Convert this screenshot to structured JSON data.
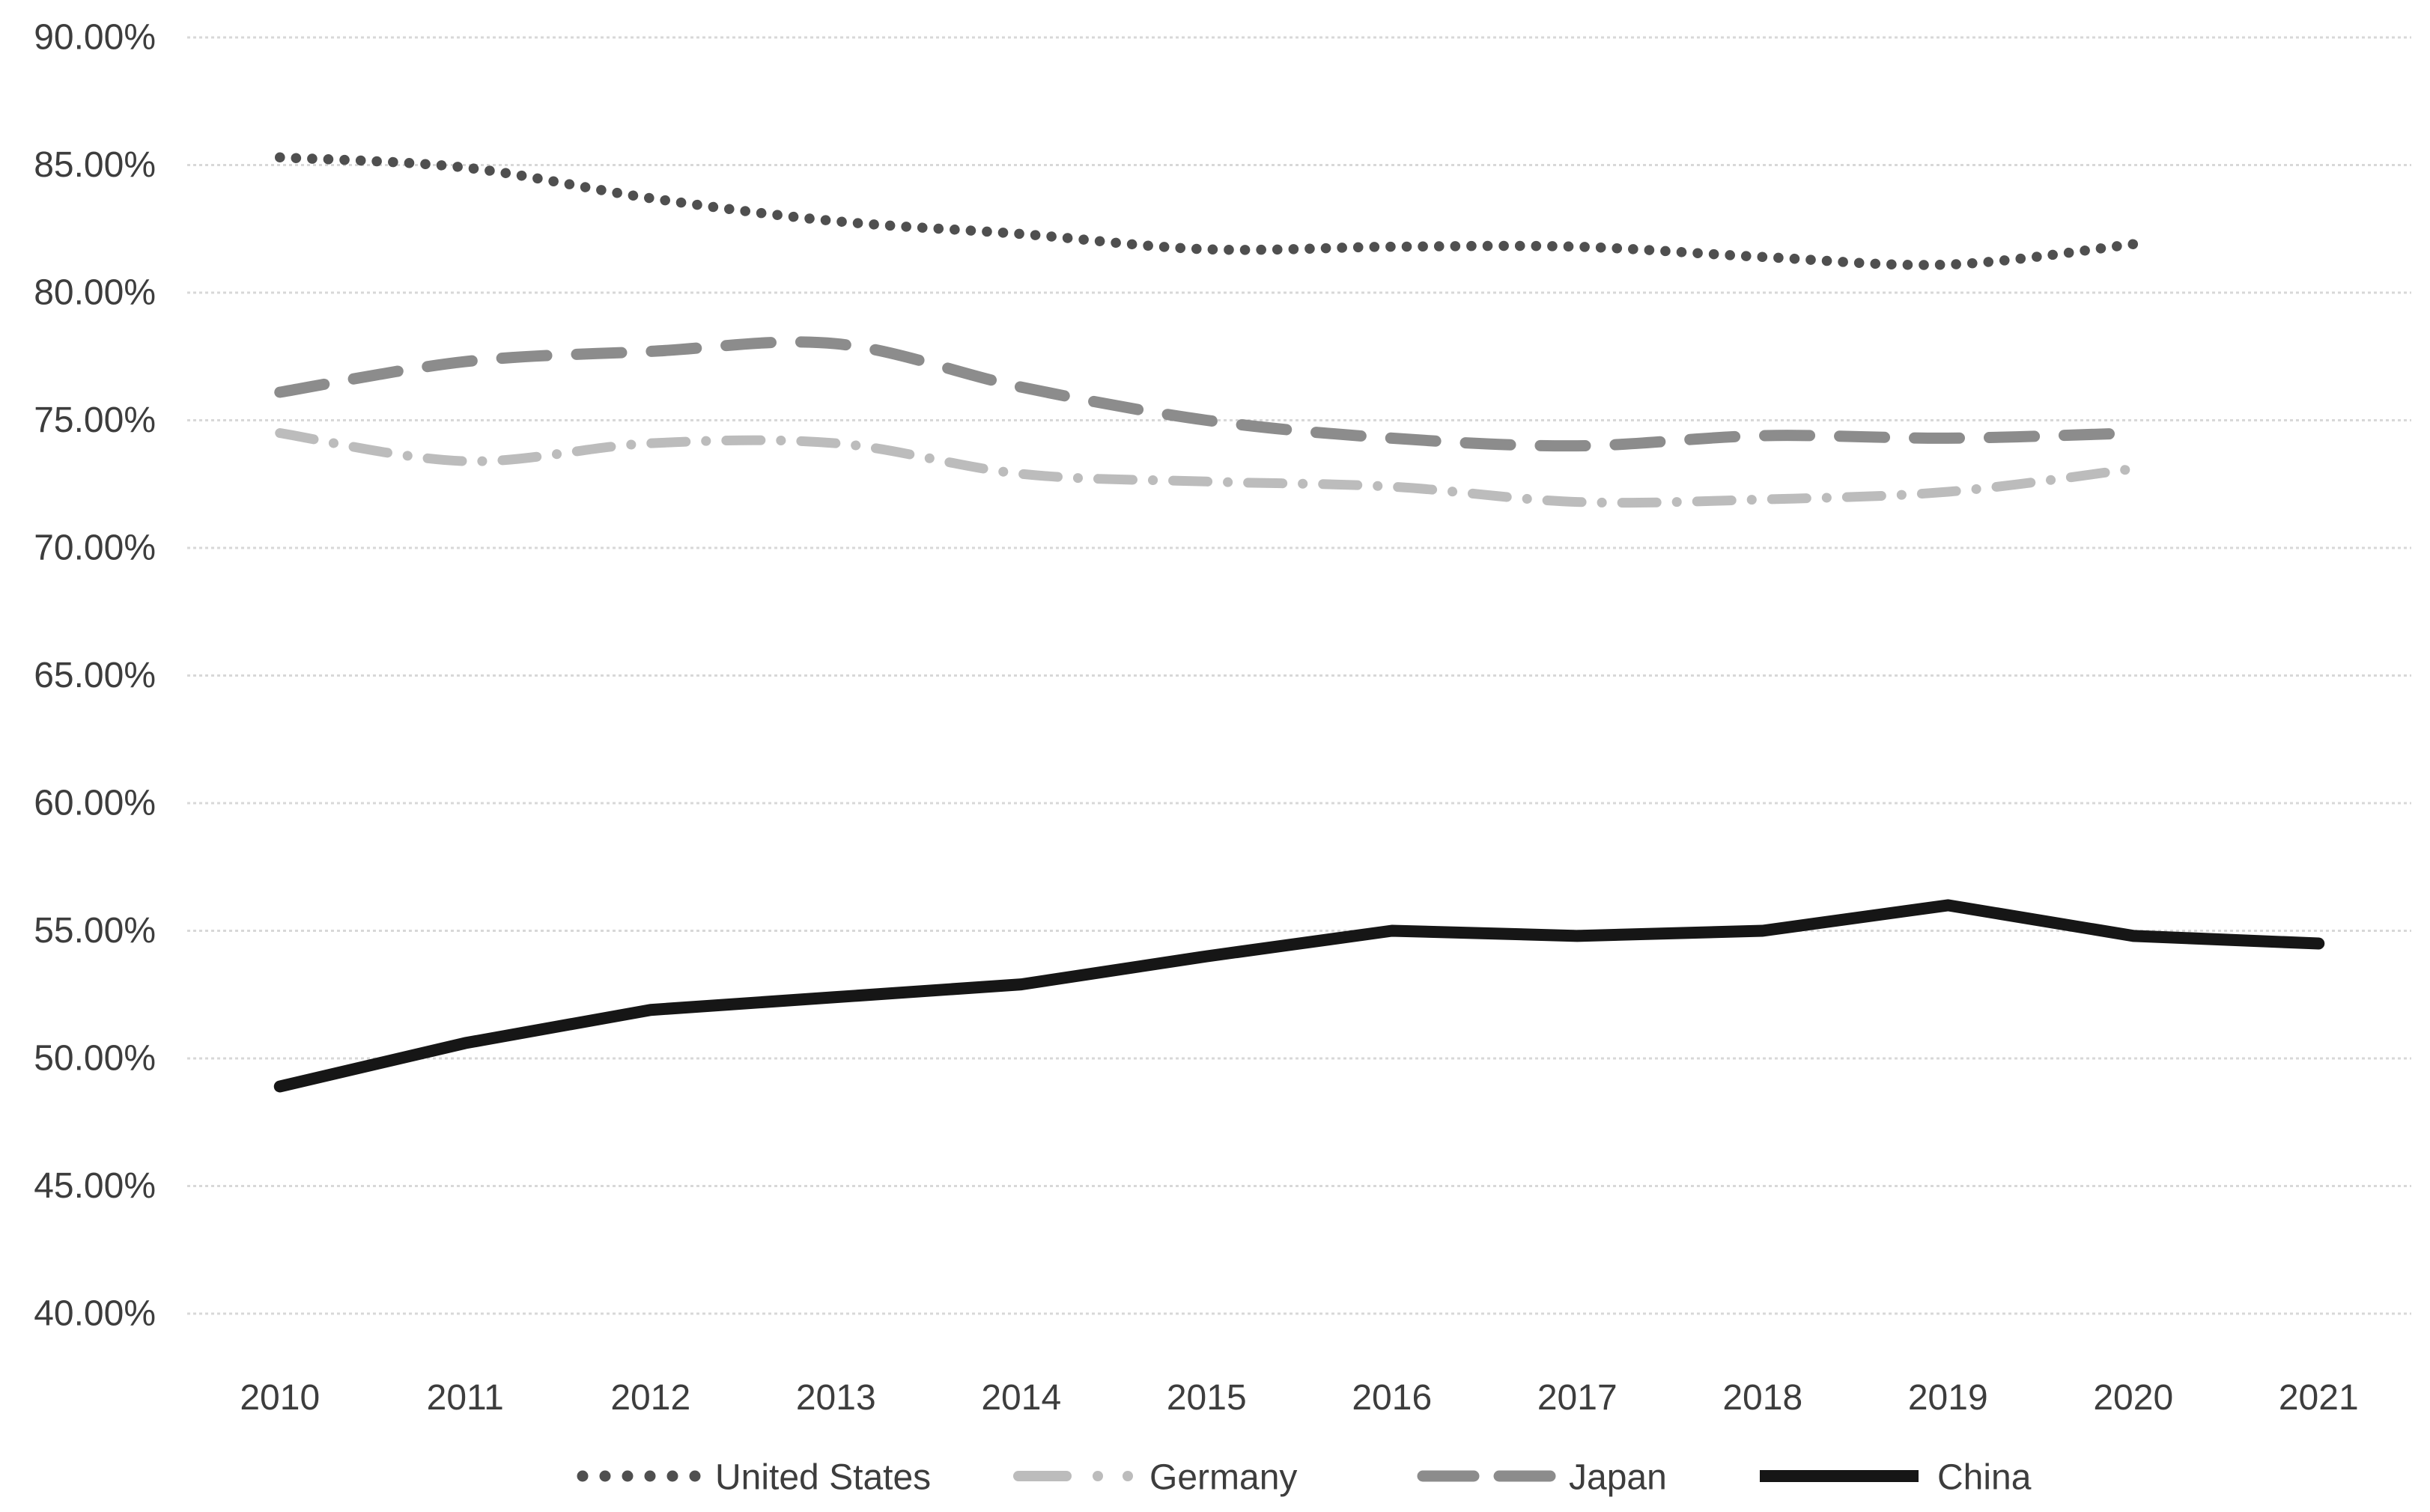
{
  "chart_data": {
    "type": "line",
    "title": "",
    "xlabel": "",
    "ylabel": "",
    "grid": true,
    "legend_position": "bottom",
    "categories": [
      "2010",
      "2011",
      "2012",
      "2013",
      "2014",
      "2015",
      "2016",
      "2017",
      "2018",
      "2019",
      "2020",
      "2021"
    ],
    "y_axis": {
      "min": 40,
      "max": 90,
      "step": 5,
      "unit": "%",
      "tick_labels": [
        "90.00%",
        "85.00%",
        "80.00%",
        "75.00%",
        "70.00%",
        "65.00%",
        "60.00%",
        "55.00%",
        "50.00%",
        "45.00%",
        "40.00%"
      ]
    },
    "colors": {
      "united_states": "#4f4f4f",
      "germany": "#bcbcbc",
      "japan": "#8c8c8c",
      "china": "#161616",
      "gridline": "#d8d8d8",
      "axis_text": "#3d3d3d"
    },
    "series": [
      {
        "name": "United States",
        "color": "#4f4f4f",
        "line_style": "dotted",
        "smooth": true,
        "values": [
          85.3,
          84.9,
          83.7,
          82.8,
          82.3,
          81.7,
          81.8,
          81.8,
          81.4,
          81.1,
          81.9,
          null
        ]
      },
      {
        "name": "Germany",
        "color": "#bcbcbc",
        "line_style": "dash-dot",
        "smooth": true,
        "values": [
          74.5,
          73.4,
          74.1,
          74.1,
          72.9,
          72.6,
          72.4,
          71.8,
          71.9,
          72.2,
          73.1,
          null
        ]
      },
      {
        "name": "Japan",
        "color": "#8c8c8c",
        "line_style": "dashed",
        "smooth": true,
        "values": [
          76.1,
          77.3,
          77.7,
          78.0,
          76.3,
          75.0,
          74.3,
          74.0,
          74.4,
          74.3,
          74.5,
          null
        ]
      },
      {
        "name": "China",
        "color": "#161616",
        "line_style": "solid",
        "smooth": false,
        "values": [
          48.9,
          50.6,
          51.9,
          52.4,
          52.9,
          54.0,
          55.0,
          54.8,
          55.0,
          56.0,
          54.8,
          54.5
        ]
      }
    ]
  }
}
